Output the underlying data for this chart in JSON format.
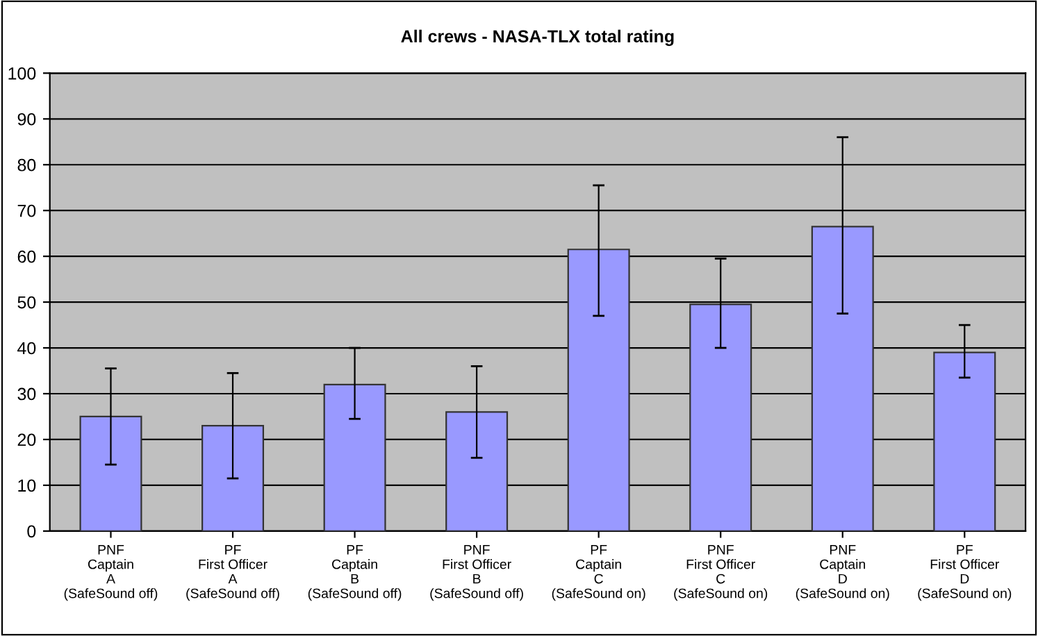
{
  "chart_data": {
    "type": "bar",
    "title": "All crews - NASA-TLX total rating",
    "categories": [
      "PNF\nCaptain\nA\n(SafeSound off)",
      "PF\nFirst Officer\nA\n(SafeSound off)",
      "PF\nCaptain\nB\n(SafeSound off)",
      "PNF\nFirst Officer\nB\n(SafeSound off)",
      "PF\nCaptain\nC\n(SafeSound on)",
      "PNF\nFirst Officer\nC\n(SafeSound on)",
      "PNF\nCaptain\nD\n(SafeSound on)",
      "PF\nFirst Officer\nD\n(SafeSound on)"
    ],
    "values": [
      25,
      23,
      32,
      26,
      61.5,
      49.5,
      66.5,
      39
    ],
    "errors": [
      [
        14.5,
        35.5
      ],
      [
        11.5,
        34.5
      ],
      [
        24.5,
        40
      ],
      [
        16,
        36
      ],
      [
        47,
        75.5
      ],
      [
        40,
        59.5
      ],
      [
        47.5,
        86
      ],
      [
        33.5,
        45
      ]
    ],
    "color": "#9999ff",
    "ylim": [
      0,
      100
    ],
    "yticks": [
      0,
      10,
      20,
      30,
      40,
      50,
      60,
      70,
      80,
      90,
      100
    ],
    "grid": "y",
    "legend": false
  }
}
